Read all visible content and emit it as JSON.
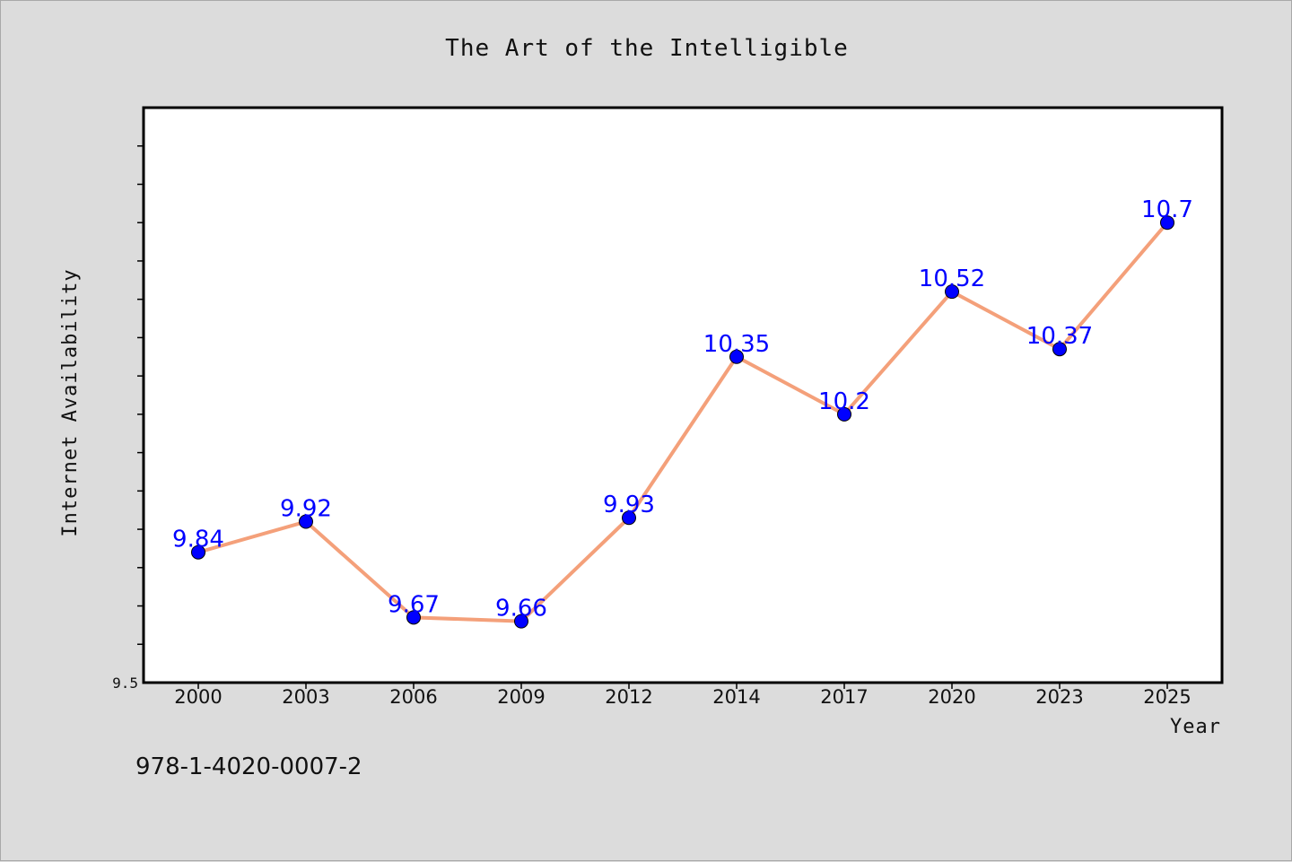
{
  "chart_data": {
    "type": "line",
    "title": "The Art of the Intelligible",
    "xlabel": "Year",
    "ylabel": "Internet Availability",
    "categories": [
      "2000",
      "2003",
      "2006",
      "2009",
      "2012",
      "2014",
      "2017",
      "2020",
      "2023",
      "2025"
    ],
    "series": [
      {
        "values": [
          9.84,
          9.92,
          9.67,
          9.66,
          9.93,
          10.35,
          10.2,
          10.52,
          10.37,
          10.7
        ],
        "labels": [
          "9.84",
          "9.92",
          "9.67",
          "9.66",
          "9.93",
          "10.35",
          "10.2",
          "10.52",
          "10.37",
          "10.7"
        ]
      }
    ],
    "ylim": [
      9.5,
      11.0
    ],
    "yticks": [
      {
        "value": 9.5,
        "label": "9.5"
      }
    ],
    "grid": false,
    "line_color": "#f4a07a",
    "marker_color": "#0000ff",
    "label_color": "#0000ff"
  },
  "footer": {
    "isbn": "978-1-4020-0007-2"
  }
}
